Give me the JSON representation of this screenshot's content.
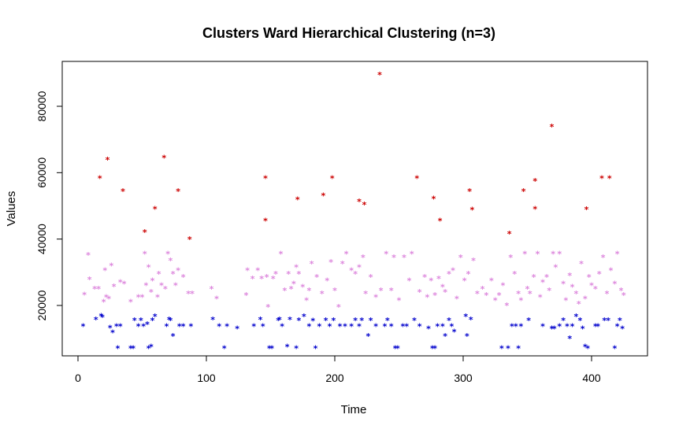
{
  "chart_data": {
    "type": "scatter",
    "title": "Clusters Ward Hierarchical Clustering (n=3)",
    "xlabel": "Time",
    "ylabel": "Values",
    "xlim": [
      0,
      430
    ],
    "ylim": [
      5000,
      92000
    ],
    "x_ticks": [
      0,
      100,
      200,
      300,
      400
    ],
    "y_ticks": [
      20000,
      40000,
      60000,
      80000
    ],
    "marker": "*",
    "grid": false,
    "series": [
      {
        "color": "#cc0000",
        "points": [
          [
            17,
            58800
          ],
          [
            23,
            64300
          ],
          [
            35,
            54900
          ],
          [
            52,
            42500
          ],
          [
            60,
            49500
          ],
          [
            67,
            65000
          ],
          [
            78,
            54900
          ],
          [
            87,
            40400
          ],
          [
            146,
            58800
          ],
          [
            146,
            46000
          ],
          [
            171,
            52400
          ],
          [
            191,
            53500
          ],
          [
            198,
            58800
          ],
          [
            219,
            51800
          ],
          [
            223,
            50800
          ],
          [
            235,
            90000
          ],
          [
            264,
            58800
          ],
          [
            277,
            52600
          ],
          [
            282,
            46000
          ],
          [
            305,
            54900
          ],
          [
            307,
            49300
          ],
          [
            336,
            42000
          ],
          [
            347,
            54900
          ],
          [
            356,
            58000
          ],
          [
            356,
            49500
          ],
          [
            369,
            74300
          ],
          [
            396,
            49400
          ],
          [
            408,
            58800
          ],
          [
            414,
            58800
          ]
        ]
      },
      {
        "color": "#dd88dd",
        "points": [
          [
            5,
            23700
          ],
          [
            8,
            35700
          ],
          [
            9,
            28300
          ],
          [
            13,
            25400
          ],
          [
            16,
            25400
          ],
          [
            20,
            21500
          ],
          [
            21,
            31000
          ],
          [
            22,
            23000
          ],
          [
            24,
            22500
          ],
          [
            26,
            32500
          ],
          [
            28,
            26200
          ],
          [
            33,
            27500
          ],
          [
            36,
            27000
          ],
          [
            41,
            21500
          ],
          [
            47,
            23000
          ],
          [
            50,
            23000
          ],
          [
            52,
            36000
          ],
          [
            53,
            26500
          ],
          [
            55,
            32000
          ],
          [
            57,
            24500
          ],
          [
            58,
            28000
          ],
          [
            62,
            23000
          ],
          [
            63,
            30000
          ],
          [
            65,
            26500
          ],
          [
            68,
            25500
          ],
          [
            70,
            36000
          ],
          [
            72,
            34000
          ],
          [
            74,
            30000
          ],
          [
            76,
            26500
          ],
          [
            78,
            31000
          ],
          [
            82,
            29000
          ],
          [
            86,
            24000
          ],
          [
            89,
            24000
          ],
          [
            104,
            25500
          ],
          [
            108,
            22500
          ],
          [
            131,
            23500
          ],
          [
            132,
            31000
          ],
          [
            136,
            28500
          ],
          [
            140,
            31000
          ],
          [
            143,
            28500
          ],
          [
            147,
            29000
          ],
          [
            148,
            20000
          ],
          [
            152,
            28500
          ],
          [
            154,
            30000
          ],
          [
            158,
            36000
          ],
          [
            161,
            25000
          ],
          [
            164,
            30000
          ],
          [
            166,
            25500
          ],
          [
            168,
            27000
          ],
          [
            170,
            32000
          ],
          [
            172,
            30000
          ],
          [
            175,
            26000
          ],
          [
            178,
            22000
          ],
          [
            180,
            25000
          ],
          [
            182,
            33000
          ],
          [
            186,
            29000
          ],
          [
            190,
            24000
          ],
          [
            194,
            28000
          ],
          [
            197,
            33500
          ],
          [
            200,
            25000
          ],
          [
            203,
            20000
          ],
          [
            206,
            33000
          ],
          [
            209,
            36000
          ],
          [
            213,
            31000
          ],
          [
            216,
            30000
          ],
          [
            219,
            32000
          ],
          [
            222,
            35000
          ],
          [
            224,
            24000
          ],
          [
            228,
            29000
          ],
          [
            232,
            23000
          ],
          [
            236,
            25000
          ],
          [
            240,
            36000
          ],
          [
            244,
            25000
          ],
          [
            246,
            35000
          ],
          [
            250,
            22000
          ],
          [
            254,
            35000
          ],
          [
            258,
            28000
          ],
          [
            260,
            36000
          ],
          [
            266,
            24500
          ],
          [
            270,
            29000
          ],
          [
            272,
            23000
          ],
          [
            275,
            28000
          ],
          [
            278,
            23500
          ],
          [
            281,
            28500
          ],
          [
            284,
            26000
          ],
          [
            286,
            24500
          ],
          [
            289,
            30000
          ],
          [
            292,
            31000
          ],
          [
            295,
            22500
          ],
          [
            298,
            35000
          ],
          [
            301,
            28000
          ],
          [
            304,
            30000
          ],
          [
            308,
            34000
          ],
          [
            311,
            24000
          ],
          [
            315,
            25500
          ],
          [
            318,
            23500
          ],
          [
            322,
            28000
          ],
          [
            325,
            22000
          ],
          [
            328,
            23500
          ],
          [
            331,
            26500
          ],
          [
            334,
            20500
          ],
          [
            337,
            35000
          ],
          [
            340,
            30000
          ],
          [
            343,
            24000
          ],
          [
            345,
            22000
          ],
          [
            348,
            36000
          ],
          [
            350,
            25500
          ],
          [
            352,
            24000
          ],
          [
            355,
            29000
          ],
          [
            358,
            36000
          ],
          [
            360,
            23000
          ],
          [
            362,
            27500
          ],
          [
            365,
            29000
          ],
          [
            367,
            25000
          ],
          [
            370,
            36000
          ],
          [
            372,
            32000
          ],
          [
            375,
            36000
          ],
          [
            378,
            27000
          ],
          [
            380,
            22000
          ],
          [
            383,
            29500
          ],
          [
            385,
            26000
          ],
          [
            388,
            24000
          ],
          [
            390,
            21000
          ],
          [
            392,
            33000
          ],
          [
            395,
            22500
          ],
          [
            398,
            29000
          ],
          [
            400,
            26500
          ],
          [
            403,
            25500
          ],
          [
            406,
            30000
          ],
          [
            409,
            35000
          ],
          [
            412,
            24000
          ],
          [
            415,
            31000
          ],
          [
            418,
            27000
          ],
          [
            420,
            36000
          ],
          [
            423,
            25000
          ],
          [
            425,
            23500
          ]
        ]
      },
      {
        "color": "#0000cc",
        "points": [
          [
            4,
            14200
          ],
          [
            14,
            16200
          ],
          [
            18,
            17300
          ],
          [
            19,
            16900
          ],
          [
            25,
            13700
          ],
          [
            27,
            12300
          ],
          [
            30,
            14200
          ],
          [
            31,
            7500
          ],
          [
            33,
            14200
          ],
          [
            41,
            7500
          ],
          [
            43,
            7500
          ],
          [
            44,
            16000
          ],
          [
            47,
            14200
          ],
          [
            49,
            16000
          ],
          [
            51,
            14200
          ],
          [
            54,
            14800
          ],
          [
            55,
            7500
          ],
          [
            57,
            8000
          ],
          [
            58,
            16000
          ],
          [
            60,
            17200
          ],
          [
            69,
            14200
          ],
          [
            71,
            16200
          ],
          [
            72,
            16000
          ],
          [
            74,
            11200
          ],
          [
            79,
            14200
          ],
          [
            82,
            14200
          ],
          [
            88,
            14200
          ],
          [
            105,
            16200
          ],
          [
            110,
            14200
          ],
          [
            114,
            7500
          ],
          [
            116,
            14200
          ],
          [
            124,
            13500
          ],
          [
            137,
            14200
          ],
          [
            142,
            16200
          ],
          [
            144,
            14200
          ],
          [
            149,
            7500
          ],
          [
            151,
            7500
          ],
          [
            156,
            16000
          ],
          [
            157,
            16200
          ],
          [
            159,
            14200
          ],
          [
            163,
            8000
          ],
          [
            165,
            16200
          ],
          [
            170,
            7500
          ],
          [
            172,
            16000
          ],
          [
            176,
            17200
          ],
          [
            180,
            14200
          ],
          [
            183,
            15800
          ],
          [
            185,
            7500
          ],
          [
            188,
            14200
          ],
          [
            193,
            16000
          ],
          [
            196,
            14200
          ],
          [
            199,
            16000
          ],
          [
            204,
            14200
          ],
          [
            208,
            14200
          ],
          [
            213,
            14200
          ],
          [
            216,
            16000
          ],
          [
            219,
            14200
          ],
          [
            221,
            16000
          ],
          [
            226,
            11200
          ],
          [
            228,
            16000
          ],
          [
            232,
            14200
          ],
          [
            239,
            14200
          ],
          [
            241,
            16000
          ],
          [
            244,
            14200
          ],
          [
            247,
            7500
          ],
          [
            249,
            7500
          ],
          [
            253,
            14200
          ],
          [
            256,
            14200
          ],
          [
            262,
            16000
          ],
          [
            266,
            14200
          ],
          [
            273,
            13500
          ],
          [
            276,
            7500
          ],
          [
            278,
            7500
          ],
          [
            280,
            14200
          ],
          [
            284,
            14200
          ],
          [
            286,
            11200
          ],
          [
            289,
            16000
          ],
          [
            291,
            14200
          ],
          [
            293,
            12500
          ],
          [
            302,
            17200
          ],
          [
            303,
            11200
          ],
          [
            306,
            16200
          ],
          [
            330,
            7500
          ],
          [
            335,
            7500
          ],
          [
            338,
            14200
          ],
          [
            341,
            14200
          ],
          [
            343,
            7500
          ],
          [
            345,
            14200
          ],
          [
            351,
            16000
          ],
          [
            362,
            14200
          ],
          [
            369,
            13500
          ],
          [
            371,
            13500
          ],
          [
            375,
            14200
          ],
          [
            378,
            16000
          ],
          [
            381,
            14200
          ],
          [
            383,
            10500
          ],
          [
            385,
            14200
          ],
          [
            388,
            17200
          ],
          [
            391,
            16000
          ],
          [
            393,
            13500
          ],
          [
            395,
            8000
          ],
          [
            397,
            7500
          ],
          [
            403,
            14200
          ],
          [
            405,
            14200
          ],
          [
            410,
            16000
          ],
          [
            413,
            16000
          ],
          [
            418,
            7500
          ],
          [
            420,
            14200
          ],
          [
            422,
            16000
          ],
          [
            424,
            13500
          ]
        ]
      }
    ]
  }
}
